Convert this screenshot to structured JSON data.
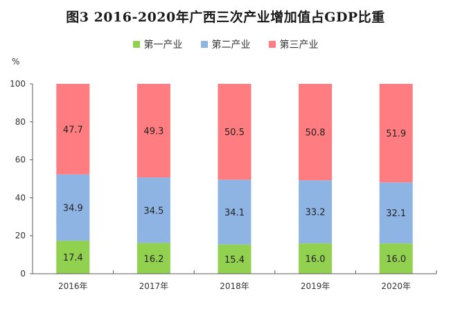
{
  "chart_data": {
    "type": "bar",
    "stacked": true,
    "title": "图3 2016-2020年广西三次产业增加值占GDP比重",
    "xlabel": "",
    "ylabel": "%",
    "ylim": [
      0,
      100
    ],
    "yticks": [
      0,
      20,
      40,
      60,
      80,
      100
    ],
    "categories": [
      "2016年",
      "2017年",
      "2018年",
      "2019年",
      "2020年"
    ],
    "series": [
      {
        "name": "第一产业",
        "color": "#92d050",
        "values": [
          17.4,
          16.2,
          15.4,
          16.0,
          16.0
        ]
      },
      {
        "name": "第二产业",
        "color": "#8eb4e3",
        "values": [
          34.9,
          34.5,
          34.1,
          33.2,
          32.1
        ]
      },
      {
        "name": "第三产业",
        "color": "#ff7c80",
        "values": [
          47.7,
          49.3,
          50.5,
          50.8,
          51.9
        ]
      }
    ],
    "legend_position": "top-center",
    "grid": false
  }
}
